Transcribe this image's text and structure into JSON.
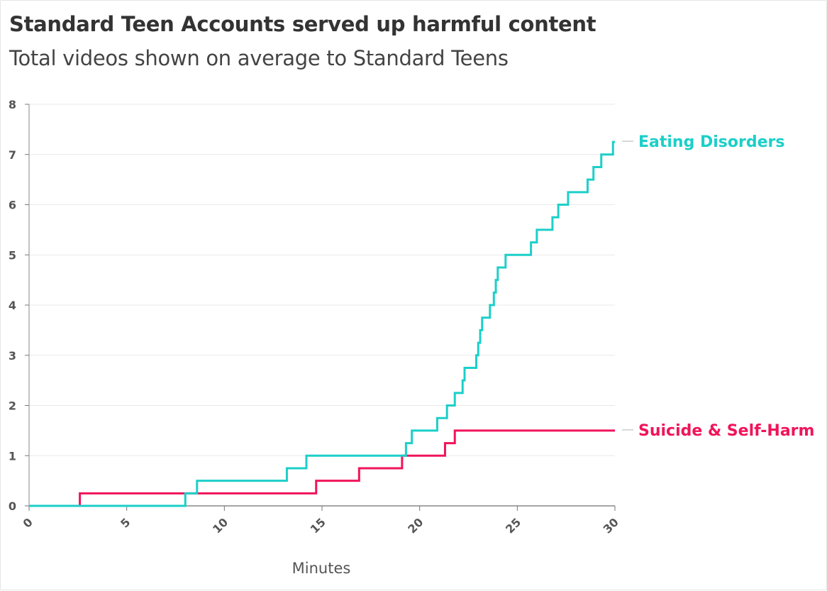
{
  "chart_data": {
    "type": "line",
    "step": true,
    "title": "Standard Teen Accounts served up harmful content",
    "subtitle": "Total videos shown on average to Standard Teens",
    "xlabel": "Minutes",
    "ylabel": "",
    "xlim": [
      0,
      30
    ],
    "ylim": [
      0,
      8
    ],
    "x_ticks": [
      "0",
      "5",
      "10",
      "15",
      "20",
      "25",
      "30"
    ],
    "y_ticks": [
      "0",
      "1",
      "2",
      "3",
      "4",
      "5",
      "6",
      "7",
      "8"
    ],
    "grid": "horizontal",
    "legend": "direct labels at right end of lines",
    "series": [
      {
        "name": "Eating Disorders",
        "color": "#1ccfc9",
        "points": [
          [
            0,
            0
          ],
          [
            8,
            0.25
          ],
          [
            8.6,
            0.5
          ],
          [
            13.2,
            0.75
          ],
          [
            14.2,
            1
          ],
          [
            19.3,
            1.25
          ],
          [
            19.6,
            1.5
          ],
          [
            20.9,
            1.75
          ],
          [
            21.4,
            2
          ],
          [
            21.8,
            2.25
          ],
          [
            22.2,
            2.5
          ],
          [
            22.3,
            2.75
          ],
          [
            22.9,
            3
          ],
          [
            23,
            3.25
          ],
          [
            23.1,
            3.5
          ],
          [
            23.2,
            3.75
          ],
          [
            23.6,
            4
          ],
          [
            23.8,
            4.25
          ],
          [
            23.9,
            4.5
          ],
          [
            24,
            4.75
          ],
          [
            24.4,
            5
          ],
          [
            25.7,
            5.25
          ],
          [
            26,
            5.5
          ],
          [
            26.8,
            5.75
          ],
          [
            27.1,
            6
          ],
          [
            27.6,
            6.25
          ],
          [
            28.6,
            6.5
          ],
          [
            28.9,
            6.75
          ],
          [
            29.3,
            7
          ],
          [
            29.9,
            7.25
          ]
        ],
        "end_x": 30
      },
      {
        "name": "Suicide & Self-Harm",
        "color": "#f0145a",
        "points": [
          [
            0,
            0
          ],
          [
            2.6,
            0.25
          ],
          [
            14.7,
            0.5
          ],
          [
            16.9,
            0.75
          ],
          [
            19.1,
            1
          ],
          [
            21.3,
            1.25
          ],
          [
            21.8,
            1.5
          ]
        ],
        "end_x": 30
      }
    ]
  }
}
